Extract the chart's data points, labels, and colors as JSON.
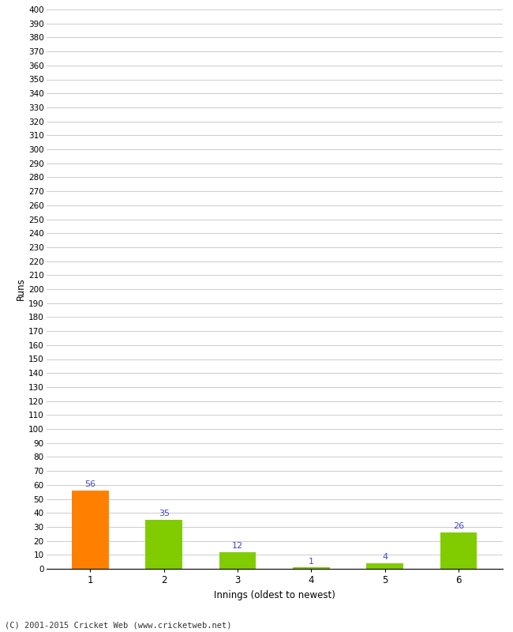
{
  "categories": [
    "1",
    "2",
    "3",
    "4",
    "5",
    "6"
  ],
  "values": [
    56,
    35,
    12,
    1,
    4,
    26
  ],
  "bar_colors": [
    "#ff8000",
    "#80cc00",
    "#80cc00",
    "#80cc00",
    "#80cc00",
    "#80cc00"
  ],
  "label_color": "#4444cc",
  "ylabel": "Runs",
  "xlabel": "Innings (oldest to newest)",
  "ylim": [
    0,
    400
  ],
  "background_color": "#ffffff",
  "grid_color": "#cccccc",
  "footer": "(C) 2001-2015 Cricket Web (www.cricketweb.net)"
}
